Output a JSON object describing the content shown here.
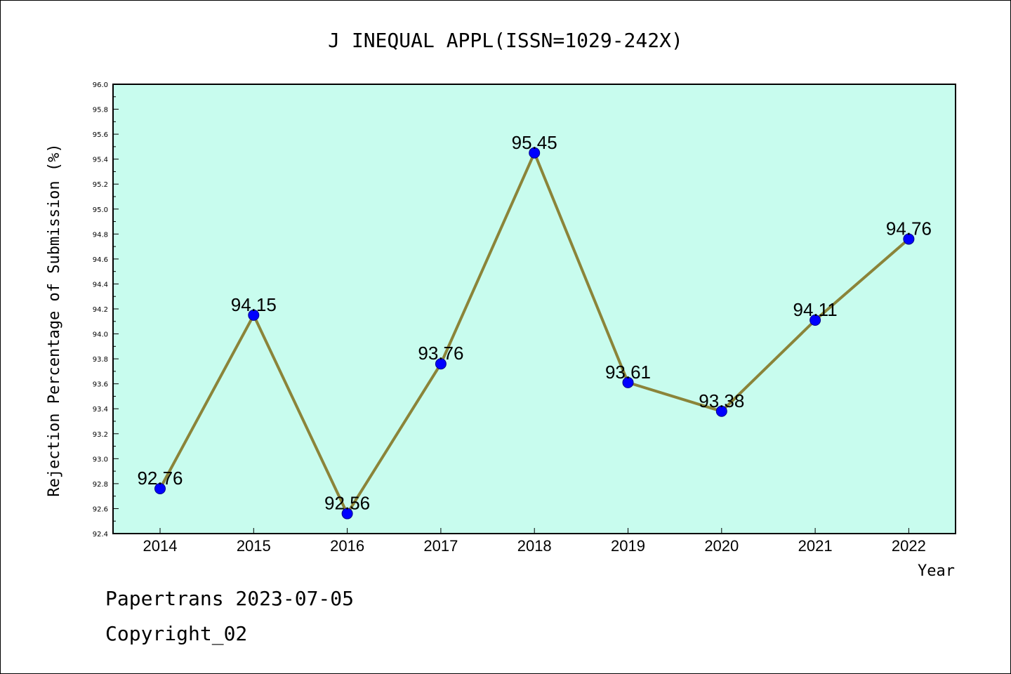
{
  "chart_data": {
    "type": "line",
    "title": "J INEQUAL APPL(ISSN=1029-242X)",
    "xlabel": "Year",
    "ylabel": "Rejection Percentage of Submission (%)",
    "categories": [
      "2014",
      "2015",
      "2016",
      "2017",
      "2018",
      "2019",
      "2020",
      "2021",
      "2022"
    ],
    "values": [
      92.76,
      94.15,
      92.56,
      93.76,
      95.45,
      93.61,
      93.38,
      94.11,
      94.76
    ],
    "data_labels": [
      "92.76",
      "94.15",
      "92.56",
      "93.76",
      "95.45",
      "93.61",
      "93.38",
      "94.11",
      "94.76"
    ],
    "ylim": [
      92.4,
      96.0
    ],
    "yticks": [
      "92.4",
      "92.6",
      "92.8",
      "93.0",
      "93.2",
      "93.4",
      "93.6",
      "93.8",
      "94.0",
      "94.2",
      "94.4",
      "94.6",
      "94.8",
      "95.0",
      "95.2",
      "95.4",
      "95.6",
      "95.8",
      "96.0"
    ],
    "grid": false,
    "colors": {
      "plot_background": "#c8fcee",
      "line": "#8b8439",
      "marker": "#0000ff"
    }
  },
  "footer": {
    "line1": "Papertrans 2023-07-05",
    "line2": "Copyright_02"
  }
}
